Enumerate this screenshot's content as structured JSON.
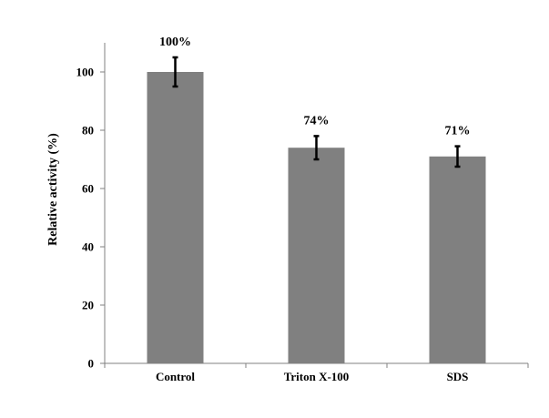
{
  "chart_data": {
    "type": "bar",
    "categories": [
      "Control",
      "Triton X-100",
      "SDS"
    ],
    "values": [
      100,
      74,
      71
    ],
    "error": [
      5,
      4,
      3.5
    ],
    "data_labels": [
      "100%",
      "74%",
      "71%"
    ],
    "title": "",
    "xlabel": "",
    "ylabel": "Relative activity (%)",
    "ylim": [
      0,
      110
    ],
    "yticks": [
      0,
      20,
      40,
      60,
      80,
      100
    ],
    "grid": false,
    "legend": "none",
    "bar_color": "#808080"
  }
}
